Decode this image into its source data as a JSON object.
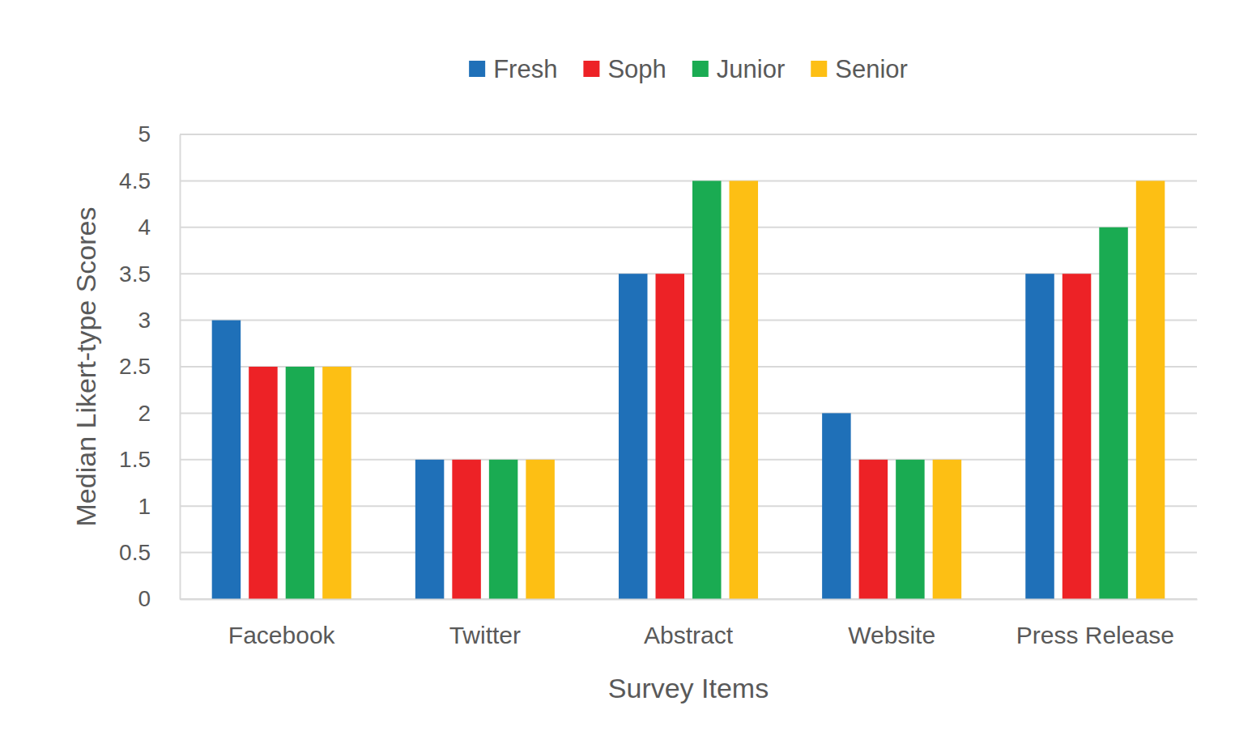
{
  "chart_data": {
    "type": "bar",
    "x_label": "Survey Items",
    "y_label": "Median Likert-type Scores",
    "categories": [
      "Facebook",
      "Twitter",
      "Abstract",
      "Website",
      "Press Release"
    ],
    "series": [
      {
        "name": "Fresh",
        "color": "#1f70b8",
        "values": [
          3,
          1.5,
          3.5,
          2,
          3.5
        ]
      },
      {
        "name": "Soph",
        "color": "#ed2226",
        "values": [
          2.5,
          1.5,
          3.5,
          1.5,
          3.5
        ]
      },
      {
        "name": "Junior",
        "color": "#1aab52",
        "values": [
          2.5,
          1.5,
          4.5,
          1.5,
          4
        ]
      },
      {
        "name": "Senior",
        "color": "#fdbf14",
        "values": [
          2.5,
          1.5,
          4.5,
          1.5,
          4.5
        ]
      }
    ],
    "ylim": [
      0,
      5
    ],
    "yticks": [
      0,
      0.5,
      1,
      1.5,
      2,
      2.5,
      3,
      3.5,
      4,
      4.5,
      5
    ],
    "grid": true,
    "legend": "top"
  }
}
